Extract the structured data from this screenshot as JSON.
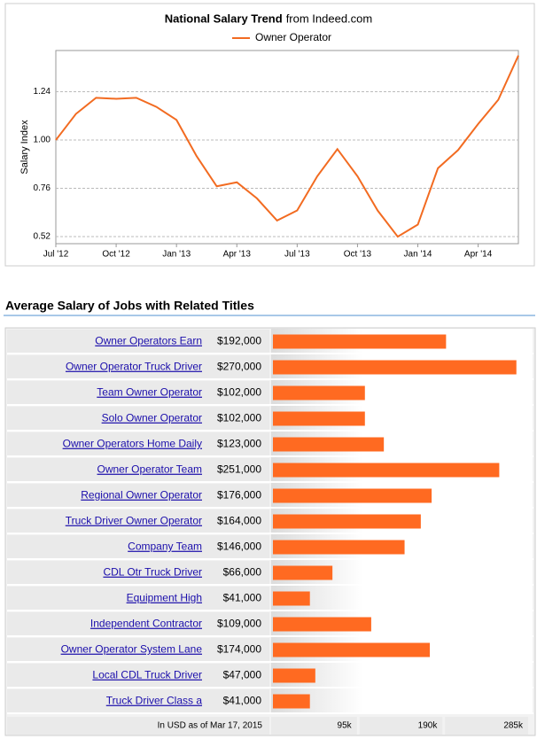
{
  "chart_data": [
    {
      "type": "line",
      "title": "National Salary Trend",
      "subtitle": "from Indeed.com",
      "ylabel": "Salary Index",
      "categories": [
        "Jul '12",
        null,
        null,
        "Oct '12",
        null,
        null,
        "Jan '13",
        null,
        null,
        "Apr '13",
        null,
        null,
        "Jul '13",
        null,
        null,
        "Oct '13",
        null,
        null,
        "Jan '14",
        null,
        null,
        "Apr '14",
        null,
        null
      ],
      "series": [
        {
          "name": "Owner Operator",
          "color": "#f26b21",
          "values": [
            1.0,
            1.13,
            1.21,
            1.205,
            1.21,
            1.165,
            1.1,
            0.92,
            0.77,
            0.79,
            0.71,
            0.6,
            0.65,
            0.82,
            0.955,
            0.82,
            0.65,
            0.52,
            0.58,
            0.86,
            0.95,
            1.08,
            1.2,
            1.42
          ]
        }
      ],
      "ylim": [
        0.485,
        1.445
      ],
      "yticks": [
        0.52,
        0.76,
        {
          "value": 1,
          "label": "1.00"
        },
        1.24
      ],
      "grid": true,
      "legend": "top"
    },
    {
      "type": "barh",
      "title": "Average Salary of Jobs with Related Titles",
      "note": "In USD as of Mar 17, 2015",
      "color": "#ff6a21",
      "categories": [
        "Owner Operators Earn",
        "Owner Operator Truck Driver",
        "Team Owner Operator",
        "Solo Owner Operator",
        "Owner Operators Home Daily",
        "Owner Operator Team",
        "Regional Owner Operator",
        "Truck Driver Owner Operator",
        "Company Team",
        "CDL Otr Truck Driver",
        "Equipment High",
        "Independent Contractor",
        "Owner Operator System Lane",
        "Local CDL Truck Driver",
        "Truck Driver Class a"
      ],
      "values": [
        192000,
        270000,
        102000,
        102000,
        123000,
        251000,
        176000,
        164000,
        146000,
        66000,
        41000,
        109000,
        174000,
        47000,
        41000
      ],
      "value_labels": [
        "$192,000",
        "$270,000",
        "$102,000",
        "$102,000",
        "$123,000",
        "$251,000",
        "$176,000",
        "$164,000",
        "$146,000",
        "$66,000",
        "$41,000",
        "$109,000",
        "$174,000",
        "$47,000",
        "$41,000"
      ],
      "xlim": [
        0,
        285000
      ],
      "xticks": [
        {
          "value": 95000,
          "label": "95k"
        },
        {
          "value": 190000,
          "label": "190k"
        },
        {
          "value": 285000,
          "label": "285k"
        }
      ]
    }
  ]
}
